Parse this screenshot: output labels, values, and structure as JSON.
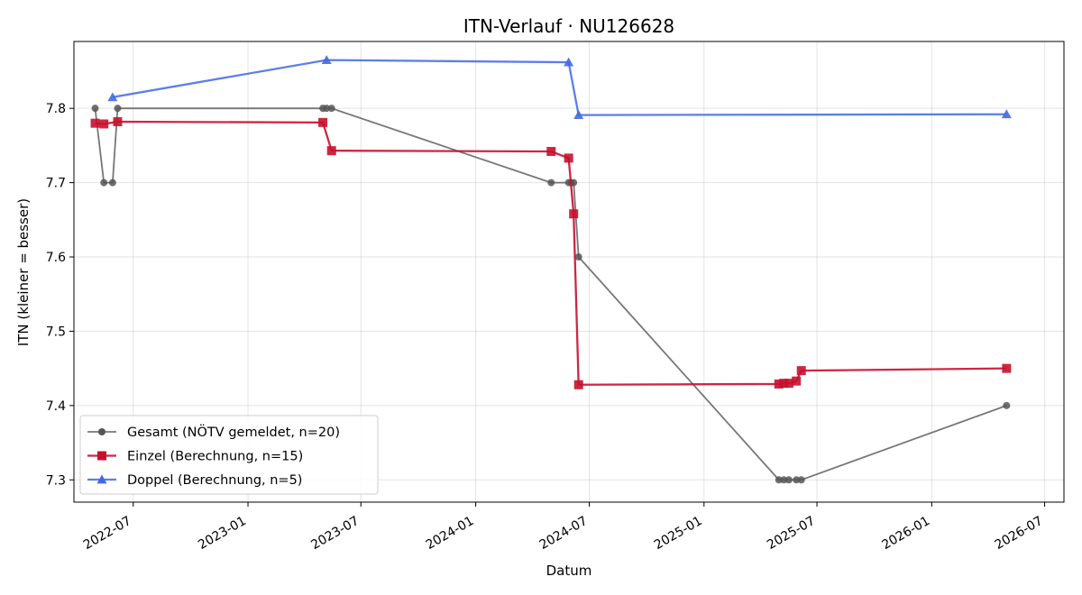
{
  "chart_data": {
    "type": "line",
    "title": "ITN-Verlauf · NU126628",
    "xlabel": "Datum",
    "ylabel": "ITN  (kleiner = besser)",
    "x_axis_type": "date",
    "xlim": [
      "2022-03-28",
      "2026-08-01"
    ],
    "ylim": [
      7.27,
      7.89
    ],
    "x_ticks": [
      "2022-07-01",
      "2023-01-01",
      "2023-07-01",
      "2024-01-01",
      "2024-07-01",
      "2025-01-01",
      "2025-07-01",
      "2026-01-01",
      "2026-07-01"
    ],
    "x_tick_labels": [
      "2022-07",
      "2023-01",
      "2023-07",
      "2024-01",
      "2024-07",
      "2025-01",
      "2025-07",
      "2026-01",
      "2026-07"
    ],
    "y_ticks": [
      7.3,
      7.4,
      7.5,
      7.6,
      7.7,
      7.8
    ],
    "y_tick_labels": [
      "7.3",
      "7.4",
      "7.5",
      "7.6",
      "7.7",
      "7.8"
    ],
    "grid": true,
    "legend_position": "lower-left",
    "series": [
      {
        "name": "Gesamt (NÖTV gemeldet, n=20)",
        "color": "#555555",
        "marker": "circle",
        "points": [
          [
            "2022-05-01",
            7.8
          ],
          [
            "2022-05-15",
            7.7
          ],
          [
            "2022-05-29",
            7.7
          ],
          [
            "2022-06-06",
            7.8
          ],
          [
            "2023-05-01",
            7.8
          ],
          [
            "2023-05-07",
            7.8
          ],
          [
            "2023-05-15",
            7.8
          ],
          [
            "2024-05-01",
            7.7
          ],
          [
            "2024-05-29",
            7.7
          ],
          [
            "2024-06-02",
            7.7
          ],
          [
            "2024-06-06",
            7.7
          ],
          [
            "2024-06-14",
            7.6
          ],
          [
            "2025-05-01",
            7.3
          ],
          [
            "2025-05-09",
            7.3
          ],
          [
            "2025-05-17",
            7.3
          ],
          [
            "2025-05-29",
            7.3
          ],
          [
            "2025-06-06",
            7.3
          ],
          [
            "2026-05-01",
            7.4
          ]
        ]
      },
      {
        "name": "Einzel (Berechnung, n=15)",
        "color": "#c8102e",
        "marker": "square",
        "points": [
          [
            "2022-05-01",
            7.78
          ],
          [
            "2022-05-15",
            7.779
          ],
          [
            "2022-06-06",
            7.782
          ],
          [
            "2023-05-01",
            7.781
          ],
          [
            "2023-05-15",
            7.743
          ],
          [
            "2024-05-01",
            7.742
          ],
          [
            "2024-05-29",
            7.733
          ],
          [
            "2024-06-06",
            7.658
          ],
          [
            "2024-06-14",
            7.428
          ],
          [
            "2025-05-01",
            7.429
          ],
          [
            "2025-05-09",
            7.43
          ],
          [
            "2025-05-17",
            7.43
          ],
          [
            "2025-05-29",
            7.433
          ],
          [
            "2025-06-06",
            7.447
          ],
          [
            "2026-05-01",
            7.45
          ]
        ]
      },
      {
        "name": "Doppel (Berechnung, n=5)",
        "color": "#4169e1",
        "marker": "triangle",
        "points": [
          [
            "2022-05-29",
            7.815
          ],
          [
            "2023-05-07",
            7.865
          ],
          [
            "2024-05-29",
            7.862
          ],
          [
            "2024-06-14",
            7.791
          ],
          [
            "2026-05-01",
            7.792
          ]
        ]
      }
    ]
  }
}
